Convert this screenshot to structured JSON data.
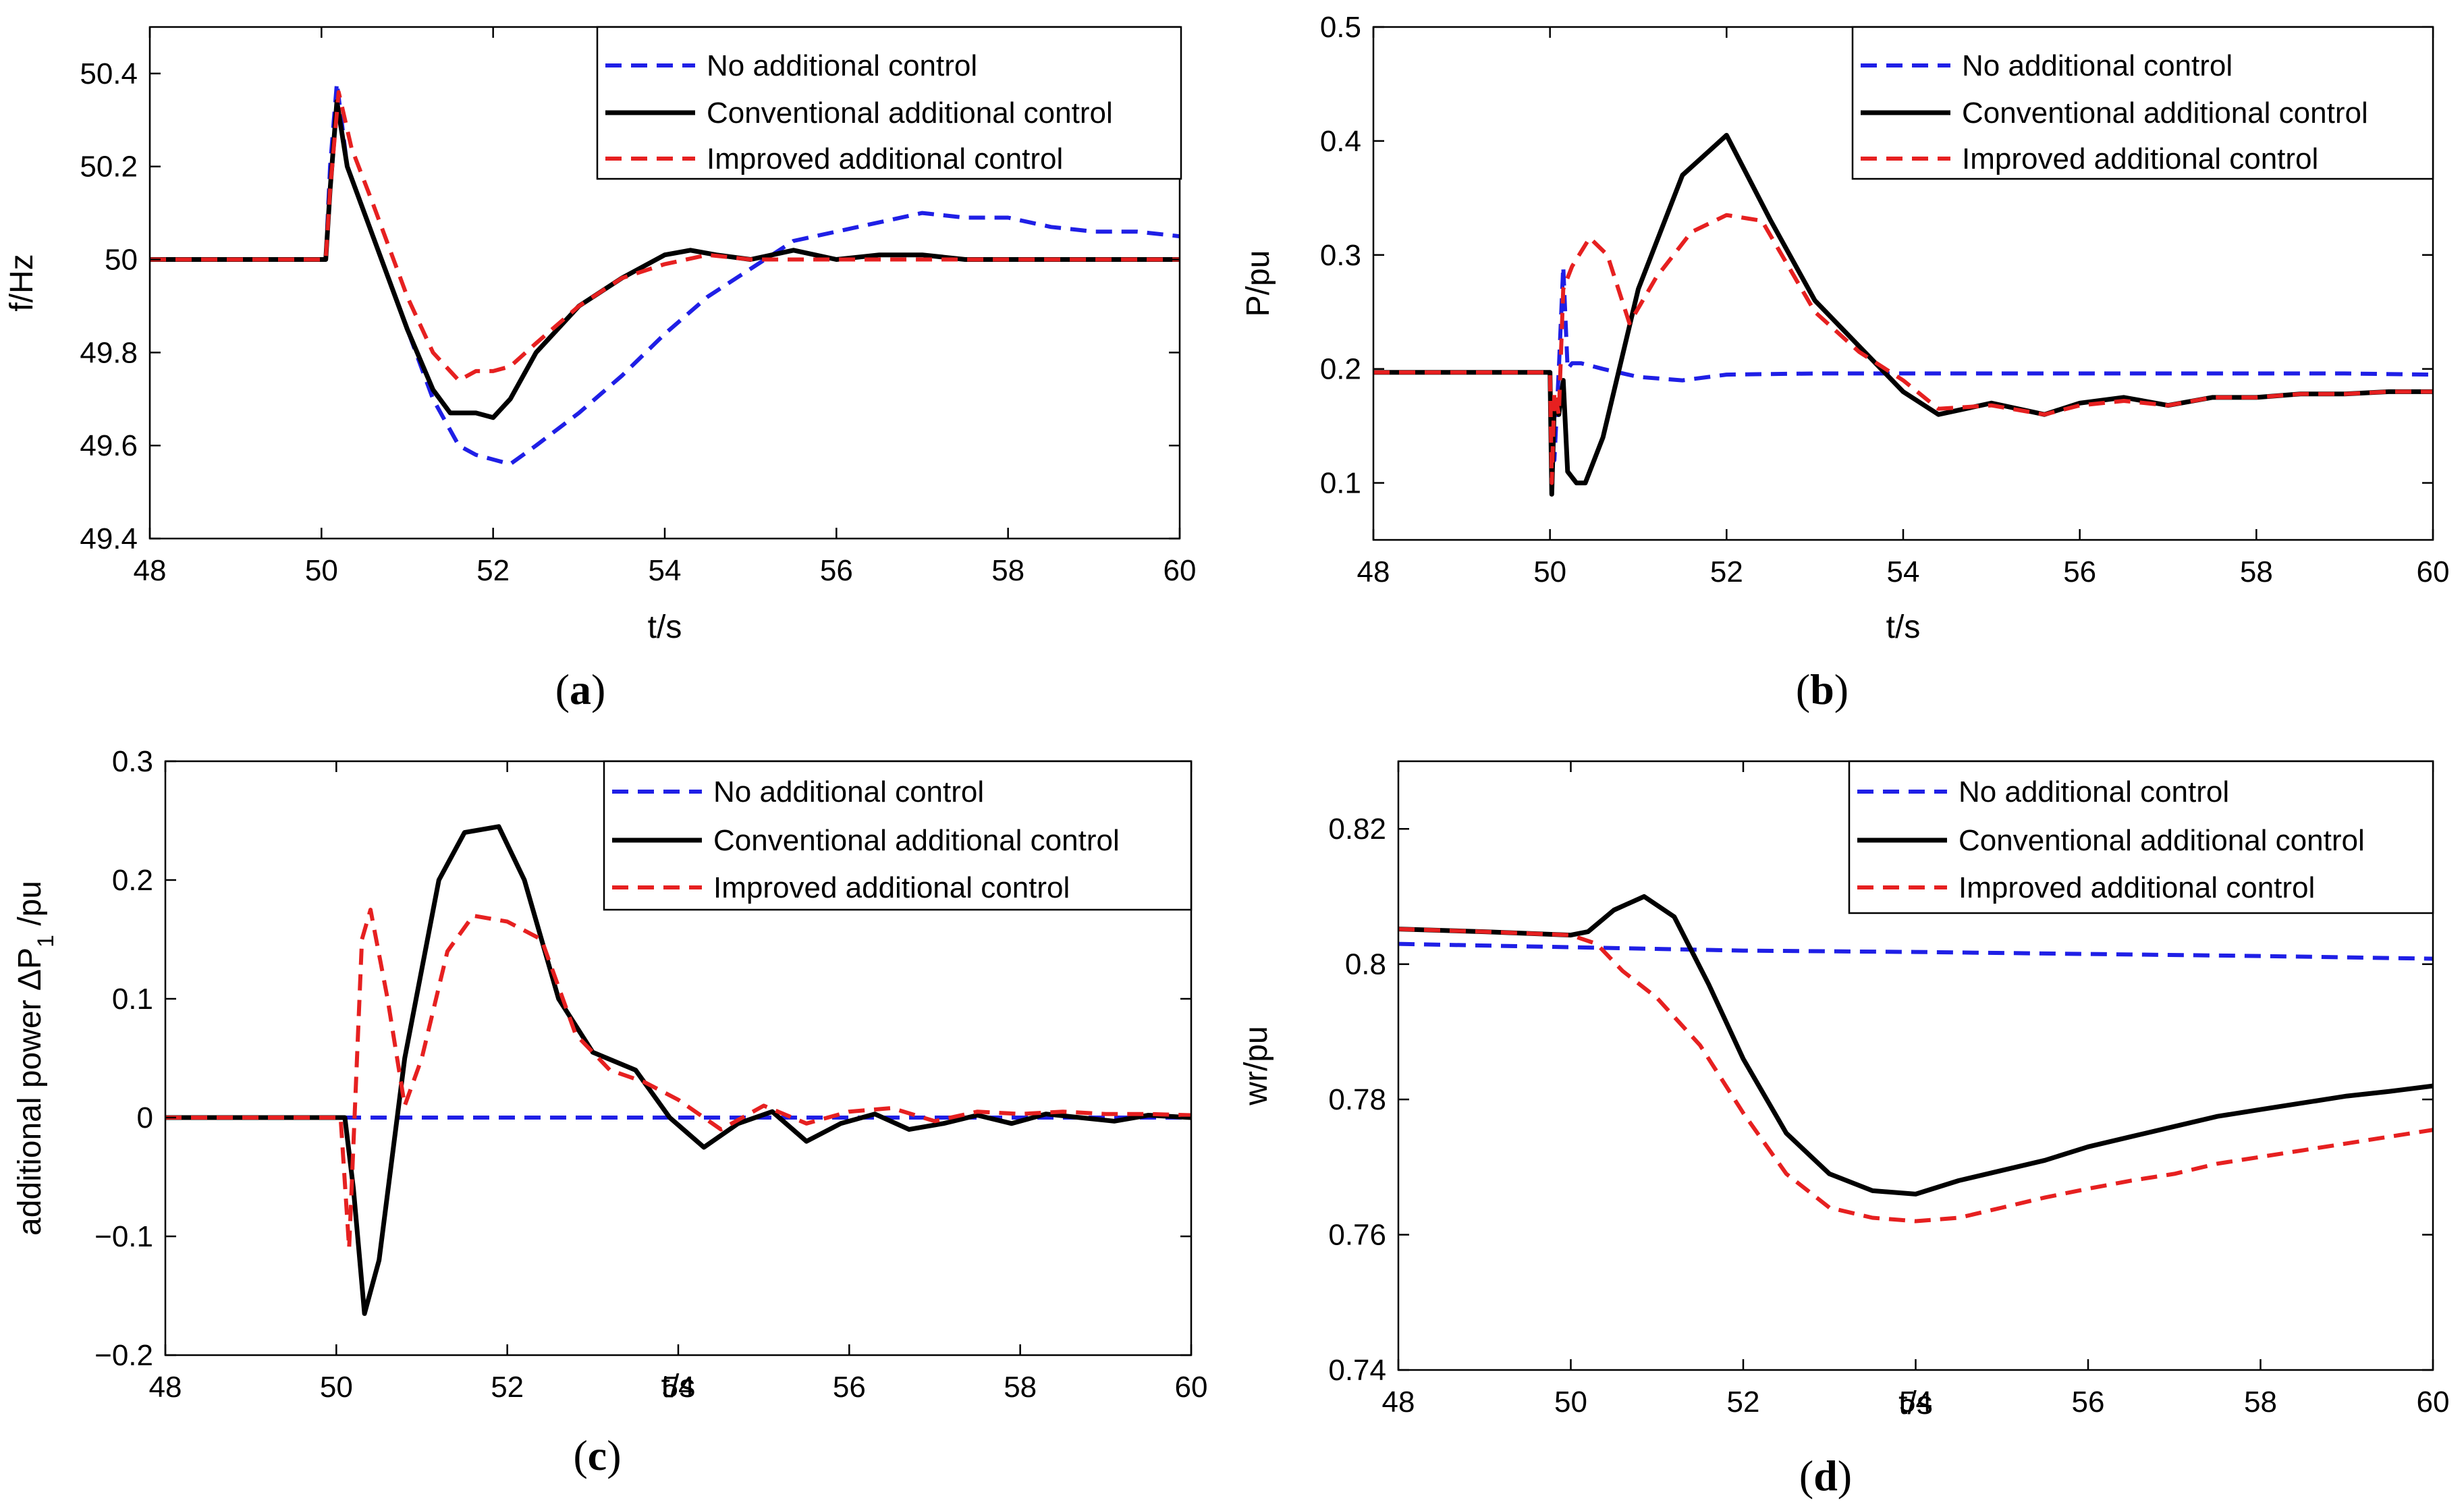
{
  "chart_data": [
    {
      "id": "a",
      "type": "line",
      "caption_label": "a",
      "xlabel": "t/s",
      "ylabel": "f/Hz",
      "xlim": [
        48,
        60
      ],
      "ylim": [
        49.4,
        50.5
      ],
      "xticks": [
        48,
        50,
        52,
        54,
        56,
        58,
        60
      ],
      "yticks": [
        49.4,
        49.6,
        49.8,
        50,
        50.2,
        50.4
      ],
      "ytick_labels": [
        "49.4",
        "49.6",
        "49.8",
        "50",
        "50.2",
        "50.4"
      ],
      "legend_position": "top-right",
      "series": [
        {
          "name": "No additional control",
          "color": "#1f1fe6",
          "style": "dashed",
          "x": [
            48,
            49,
            50,
            50.05,
            50.1,
            50.18,
            50.3,
            50.6,
            51,
            51.3,
            51.6,
            51.8,
            52,
            52.2,
            52.5,
            53,
            53.5,
            54,
            54.5,
            55,
            55.5,
            56,
            56.5,
            57,
            57.5,
            58,
            58.5,
            59,
            59.5,
            60
          ],
          "y": [
            50.0,
            50.0,
            50.0,
            50.0,
            50.2,
            50.38,
            50.2,
            50.05,
            49.85,
            49.7,
            49.6,
            49.58,
            49.57,
            49.56,
            49.6,
            49.67,
            49.75,
            49.84,
            49.92,
            49.98,
            50.04,
            50.06,
            50.08,
            50.1,
            50.09,
            50.09,
            50.07,
            50.06,
            50.06,
            50.05
          ]
        },
        {
          "name": "Conventional additional control",
          "color": "#000000",
          "style": "solid",
          "x": [
            48,
            49,
            50,
            50.05,
            50.1,
            50.18,
            50.3,
            50.6,
            51,
            51.3,
            51.5,
            51.8,
            52,
            52.2,
            52.5,
            53,
            53.5,
            54,
            54.3,
            54.6,
            55,
            55.5,
            56,
            56.5,
            57,
            57.5,
            58,
            58.5,
            59,
            59.5,
            60
          ],
          "y": [
            50.0,
            50.0,
            50.0,
            50.0,
            50.15,
            50.34,
            50.2,
            50.05,
            49.85,
            49.72,
            49.67,
            49.67,
            49.66,
            49.7,
            49.8,
            49.9,
            49.96,
            50.01,
            50.02,
            50.01,
            50.0,
            50.02,
            50.0,
            50.01,
            50.01,
            50.0,
            50.0,
            50.0,
            50.0,
            50.0,
            50.0
          ]
        },
        {
          "name": "Improved additional control",
          "color": "#e62020",
          "style": "dashed",
          "x": [
            48,
            49,
            50,
            50.05,
            50.1,
            50.2,
            50.35,
            50.6,
            51,
            51.3,
            51.6,
            51.8,
            52,
            52.2,
            52.5,
            53,
            53.5,
            54,
            54.5,
            55,
            55.5,
            56,
            56.5,
            57,
            57.5,
            58,
            58.5,
            59,
            59.5,
            60
          ],
          "y": [
            50.0,
            50.0,
            50.0,
            50.0,
            50.15,
            50.36,
            50.24,
            50.12,
            49.92,
            49.8,
            49.74,
            49.76,
            49.76,
            49.77,
            49.82,
            49.9,
            49.96,
            49.99,
            50.01,
            50.0,
            50.0,
            50.0,
            50.0,
            50.0,
            50.0,
            50.0,
            50.0,
            50.0,
            50.0,
            50.0
          ]
        }
      ]
    },
    {
      "id": "b",
      "type": "line",
      "caption_label": "b",
      "xlabel": "t/s",
      "ylabel": "P/pu",
      "xlim": [
        48,
        60
      ],
      "ylim": [
        0.05,
        0.5
      ],
      "xticks": [
        48,
        50,
        52,
        54,
        56,
        58,
        60
      ],
      "yticks": [
        0.1,
        0.2,
        0.3,
        0.4,
        0.5
      ],
      "ytick_labels": [
        "0.1",
        "0.2",
        "0.3",
        "0.4",
        "0.5"
      ],
      "legend_position": "top-right",
      "series": [
        {
          "name": "No additional control",
          "color": "#1f1fe6",
          "style": "dashed",
          "x": [
            48,
            49,
            50,
            50.02,
            50.05,
            50.1,
            50.15,
            50.2,
            50.25,
            50.35,
            50.6,
            51,
            51.5,
            52,
            53,
            54,
            55,
            56,
            57,
            58,
            59,
            60
          ],
          "y": [
            0.197,
            0.197,
            0.197,
            0.15,
            0.12,
            0.2,
            0.29,
            0.2,
            0.205,
            0.205,
            0.2,
            0.193,
            0.19,
            0.195,
            0.196,
            0.196,
            0.196,
            0.196,
            0.196,
            0.196,
            0.196,
            0.195
          ]
        },
        {
          "name": "Conventional additional control",
          "color": "#000000",
          "style": "solid",
          "x": [
            48,
            49,
            50,
            50.02,
            50.05,
            50.1,
            50.15,
            50.2,
            50.3,
            50.4,
            50.6,
            51,
            51.5,
            52,
            52.5,
            53,
            53.5,
            54,
            54.4,
            55,
            55.6,
            56,
            56.5,
            57,
            57.5,
            58,
            58.5,
            59,
            59.5,
            60
          ],
          "y": [
            0.197,
            0.197,
            0.197,
            0.09,
            0.17,
            0.16,
            0.19,
            0.11,
            0.1,
            0.1,
            0.14,
            0.27,
            0.37,
            0.405,
            0.33,
            0.26,
            0.22,
            0.18,
            0.16,
            0.17,
            0.16,
            0.17,
            0.175,
            0.168,
            0.175,
            0.175,
            0.178,
            0.178,
            0.18,
            0.18
          ]
        },
        {
          "name": "Improved additional control",
          "color": "#e62020",
          "style": "dashed",
          "x": [
            48,
            49,
            50,
            50.02,
            50.05,
            50.1,
            50.15,
            50.25,
            50.45,
            50.65,
            50.9,
            51.2,
            51.6,
            52,
            52.4,
            53,
            53.5,
            54,
            54.4,
            55,
            55.6,
            56,
            56.5,
            57,
            57.5,
            58,
            58.5,
            59,
            59.5,
            60
          ],
          "y": [
            0.197,
            0.197,
            0.197,
            0.1,
            0.18,
            0.16,
            0.27,
            0.29,
            0.315,
            0.3,
            0.24,
            0.28,
            0.32,
            0.335,
            0.33,
            0.25,
            0.215,
            0.19,
            0.165,
            0.168,
            0.16,
            0.168,
            0.172,
            0.168,
            0.175,
            0.175,
            0.178,
            0.178,
            0.18,
            0.18
          ]
        }
      ]
    },
    {
      "id": "c",
      "type": "line",
      "caption_label": "c",
      "xlabel": "t/s",
      "ylabel": "additional power ΔP",
      "ylabel_sub": "1",
      "ylabel_suffix": " /pu",
      "xlim": [
        48,
        60
      ],
      "ylim": [
        -0.2,
        0.3
      ],
      "xticks": [
        48,
        50,
        52,
        54,
        56,
        58,
        60
      ],
      "yticks": [
        -0.2,
        -0.1,
        0,
        0.1,
        0.2,
        0.3
      ],
      "ytick_labels": [
        "−0.2",
        "−0.1",
        "0",
        "0.1",
        "0.2",
        "0.3"
      ],
      "legend_position": "top-right",
      "series": [
        {
          "name": "No additional control",
          "color": "#1f1fe6",
          "style": "dashed",
          "x": [
            48,
            60
          ],
          "y": [
            0,
            0
          ]
        },
        {
          "name": "Conventional additional control",
          "color": "#000000",
          "style": "solid",
          "x": [
            48,
            49,
            50,
            50.1,
            50.2,
            50.33,
            50.5,
            50.8,
            51.2,
            51.5,
            51.9,
            52.2,
            52.6,
            53,
            53.5,
            53.9,
            54.3,
            54.7,
            55.1,
            55.5,
            55.9,
            56.3,
            56.7,
            57.1,
            57.5,
            57.9,
            58.3,
            58.7,
            59.1,
            59.5,
            60
          ],
          "y": [
            0,
            0,
            0,
            0,
            -0.06,
            -0.165,
            -0.12,
            0.05,
            0.2,
            0.24,
            0.245,
            0.2,
            0.1,
            0.055,
            0.04,
            0.0,
            -0.025,
            -0.005,
            0.005,
            -0.02,
            -0.005,
            0.003,
            -0.01,
            -0.005,
            0.002,
            -0.005,
            0.003,
            0.0,
            -0.003,
            0.002,
            0.0
          ]
        },
        {
          "name": "Improved additional control",
          "color": "#e62020",
          "style": "dashed",
          "x": [
            48,
            49,
            50,
            50.05,
            50.15,
            50.3,
            50.4,
            50.6,
            50.8,
            51.0,
            51.3,
            51.6,
            52,
            52.4,
            52.8,
            53.2,
            53.6,
            54,
            54.5,
            55,
            55.5,
            56,
            56.5,
            57,
            57.5,
            58,
            58.5,
            59,
            59.5,
            60
          ],
          "y": [
            0,
            0,
            0,
            0,
            -0.11,
            0.15,
            0.175,
            0.1,
            0.01,
            0.05,
            0.14,
            0.17,
            0.165,
            0.15,
            0.07,
            0.04,
            0.03,
            0.015,
            -0.01,
            0.01,
            -0.005,
            0.005,
            0.008,
            -0.003,
            0.005,
            0.003,
            0.005,
            0.003,
            0.003,
            0.002
          ]
        }
      ]
    },
    {
      "id": "d",
      "type": "line",
      "caption_label": "d",
      "xlabel": "t/s",
      "ylabel": "wr/pu",
      "xlim": [
        48,
        60
      ],
      "ylim": [
        0.74,
        0.83
      ],
      "xticks": [
        48,
        50,
        52,
        54,
        56,
        58,
        60
      ],
      "yticks": [
        0.74,
        0.76,
        0.78,
        0.8,
        0.82
      ],
      "ytick_labels": [
        "0.74",
        "0.76",
        "0.78",
        "0.8",
        "0.82"
      ],
      "legend_position": "top-right",
      "series": [
        {
          "name": "No additional control",
          "color": "#1f1fe6",
          "style": "dashed",
          "x": [
            48,
            50,
            52,
            54,
            56,
            58,
            60
          ],
          "y": [
            0.803,
            0.8025,
            0.802,
            0.8018,
            0.8015,
            0.8012,
            0.8008
          ]
        },
        {
          "name": "Conventional additional control",
          "color": "#000000",
          "style": "solid",
          "x": [
            48,
            49,
            50,
            50.2,
            50.5,
            50.85,
            51.2,
            51.6,
            52,
            52.5,
            53,
            53.5,
            54,
            54.5,
            55,
            55.5,
            56,
            56.5,
            57,
            57.5,
            58,
            58.5,
            59,
            59.5,
            60
          ],
          "y": [
            0.8052,
            0.8048,
            0.8043,
            0.8048,
            0.808,
            0.81,
            0.807,
            0.797,
            0.786,
            0.775,
            0.769,
            0.7665,
            0.766,
            0.768,
            0.7695,
            0.771,
            0.773,
            0.7745,
            0.776,
            0.7775,
            0.7785,
            0.7795,
            0.7805,
            0.7812,
            0.782
          ]
        },
        {
          "name": "Improved additional control",
          "color": "#e62020",
          "style": "dashed",
          "x": [
            48,
            49,
            50,
            50.3,
            50.6,
            51,
            51.5,
            52,
            52.5,
            53,
            53.5,
            54,
            54.5,
            55,
            55.5,
            56,
            56.5,
            57,
            57.5,
            58,
            58.5,
            59,
            59.5,
            60
          ],
          "y": [
            0.8052,
            0.8048,
            0.8043,
            0.803,
            0.799,
            0.795,
            0.788,
            0.778,
            0.769,
            0.764,
            0.7625,
            0.762,
            0.7625,
            0.764,
            0.7655,
            0.7668,
            0.768,
            0.769,
            0.7705,
            0.7715,
            0.7725,
            0.7735,
            0.7745,
            0.7755
          ]
        }
      ]
    }
  ]
}
